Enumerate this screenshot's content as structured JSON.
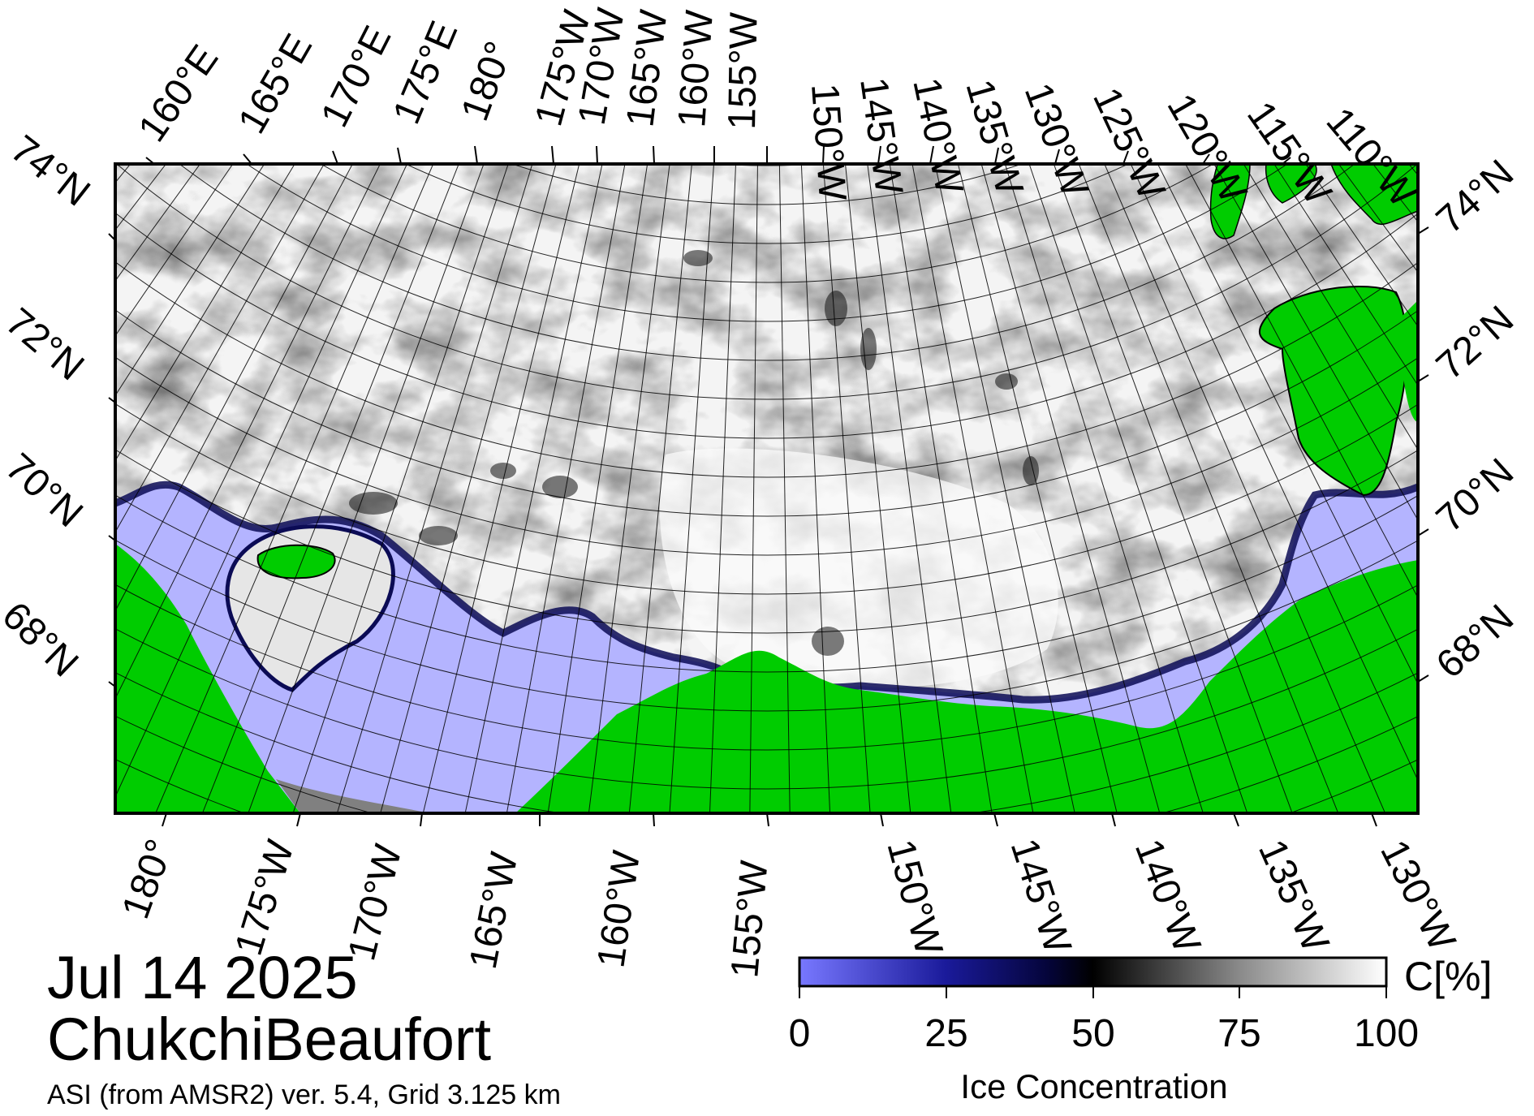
{
  "map": {
    "date": "Jul 14 2025",
    "region": "ChukchiBeaufort",
    "credit": "ASI (from AMSR2) ver. 5.4,  Grid 3.125 km",
    "top_lon_labels": [
      "160°E",
      "165°E",
      "170°E",
      "175°E",
      "180°",
      "175°W",
      "170°W",
      "165°W",
      "160°W",
      "155°W",
      "150°W",
      "145°W",
      "140°W",
      "135°W",
      "130°W",
      "125°W",
      "120°W",
      "115°W",
      "110°W"
    ],
    "bottom_lon_labels": [
      "180°",
      "175°W",
      "170°W",
      "165°W",
      "160°W",
      "155°W",
      "150°W",
      "145°W",
      "140°W",
      "135°W",
      "130°W"
    ],
    "left_lat_labels": [
      "74°N",
      "72°N",
      "70°N",
      "68°N"
    ],
    "right_lat_labels": [
      "74°N",
      "72°N",
      "70°N",
      "68°N"
    ],
    "colors": {
      "land": "#00cc00",
      "open_water": "#b4b4ff",
      "no_data": "#808080",
      "ice_full": "#ffffff",
      "ice_mid": "#000000",
      "ice_low": "#6a6aff",
      "frame": "#000000"
    }
  },
  "colorbar": {
    "unit": "C[%]",
    "label": "Ice Concentration",
    "ticks": [
      "0",
      "25",
      "50",
      "75",
      "100"
    ],
    "min": 0,
    "max": 100
  }
}
